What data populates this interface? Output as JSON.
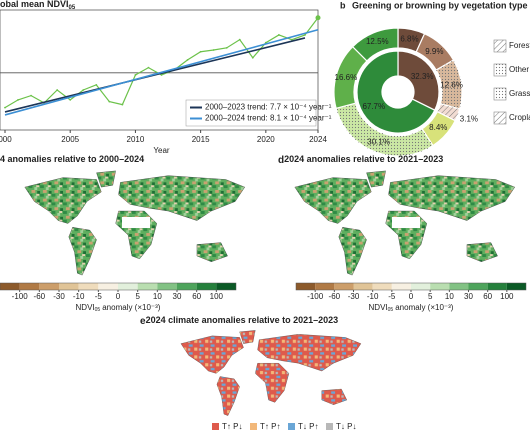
{
  "chart_data": [
    {
      "type": "line",
      "title": "obal mean NDVI",
      "title_sub": "05",
      "x_label": "Year",
      "xlim": [
        2000,
        2024
      ],
      "xticks": [
        {
          "value": 2000,
          "label": "000"
        },
        2005,
        2010,
        2015,
        2020,
        2024
      ],
      "ylim": [
        -13.3,
        14.6
      ],
      "hline": 0,
      "legend": "lower right",
      "series": [
        {
          "color": "#6cc24a",
          "marker": true,
          "x": [
            2000,
            2001,
            2002,
            2003,
            2004,
            2005,
            2006,
            2007,
            2008,
            2009,
            2010,
            2011,
            2012,
            2013,
            2014,
            2015,
            2016,
            2017,
            2018,
            2019,
            2020,
            2021,
            2022,
            2023,
            2024
          ],
          "values": [
            -8.1,
            -6.3,
            -5.3,
            -7.0,
            -4.0,
            -6.3,
            -4.0,
            -2.8,
            -6.7,
            -7.4,
            -0.5,
            1.2,
            -0.5,
            0.7,
            3.0,
            4.9,
            5.3,
            5.8,
            7.7,
            3.5,
            7.0,
            8.8,
            7.7,
            8.8,
            12.8
          ]
        },
        {
          "name": "2000–2023 trend: 7.7 × 10⁻⁴ year⁻¹",
          "color": "#1c3557",
          "x": [
            2000,
            2023
          ],
          "values": [
            -9.1,
            8.1
          ]
        },
        {
          "name": "2000–2024 trend: 8.1 × 10⁻⁴ year⁻¹",
          "color": "#3c8fd4",
          "x": [
            2000,
            2024
          ],
          "values": [
            -9.8,
            10.0
          ]
        }
      ]
    },
    {
      "type": "donut",
      "panel": "b",
      "title": "Greening or browning by vegetation type",
      "outer": {
        "values": [
          6.8,
          9.9,
          12.6,
          3.1,
          8.4,
          30.1,
          16.6,
          12.5
        ],
        "value_labels": [
          "6.8%",
          "9.9%",
          "12.6%",
          "3.1%",
          "8.4%",
          "30.1%",
          "16.6%",
          "12.5%"
        ],
        "colors": [
          "#6e4b3a",
          "#a97c62",
          "#d8b89c",
          "#f2dcd2",
          "#d8e27a",
          "#cbe7a4",
          "#5fb04a",
          "#3e9a3e"
        ]
      },
      "inner": {
        "values": [
          32.3,
          67.7
        ],
        "value_labels": [
          "32.3%",
          "67.7%"
        ],
        "colors": [
          "#6e4b3a",
          "#2e8b3a"
        ]
      },
      "legend": [
        "Forest",
        "Other vegeta",
        "Grass",
        "Cropla"
      ]
    },
    {
      "type": "map",
      "title": "4 anomalies relative to 2000–2024",
      "colorbar": {
        "ticks": [
          -100,
          -60,
          -30,
          -10,
          -5,
          0,
          5,
          10,
          30,
          60,
          100
        ],
        "colors": [
          "#8c5a2b",
          "#b07a45",
          "#cc9e6a",
          "#e0c497",
          "#efdcbc",
          "#f7f0e2",
          "#e2f0dc",
          "#b9deb0",
          "#82c284",
          "#4ea45c",
          "#25803c",
          "#0b5a26"
        ],
        "label": "NDVI",
        "label_sub": "05",
        "label_rest": "anomaly (×10⁻³)"
      }
    },
    {
      "type": "map",
      "panel": "d",
      "title": "2024 anomalies relative to 2021–2023",
      "colorbar": {
        "ticks": [
          -100,
          -60,
          -30,
          -10,
          -5,
          0,
          5,
          10,
          30,
          60,
          100
        ],
        "colors": [
          "#8c5a2b",
          "#b07a45",
          "#cc9e6a",
          "#e0c497",
          "#efdcbc",
          "#f7f0e2",
          "#e2f0dc",
          "#b9deb0",
          "#82c284",
          "#4ea45c",
          "#25803c",
          "#0b5a26"
        ],
        "label": "NDVI",
        "label_sub": "05",
        "label_rest": "anomaly (×10⁻³)"
      }
    },
    {
      "type": "map",
      "panel": "e",
      "title": "2024 climate anomalies relative to 2021–2023",
      "legend": [
        {
          "name": "T↑ P↓",
          "color": "#de5a4c"
        },
        {
          "name": "T↑ P↑",
          "color": "#f2b87a"
        },
        {
          "name": "T↓ P↑",
          "color": "#6aa6d6"
        },
        {
          "name": "T↓ P↓",
          "color": "#b8b8b8"
        }
      ]
    }
  ]
}
